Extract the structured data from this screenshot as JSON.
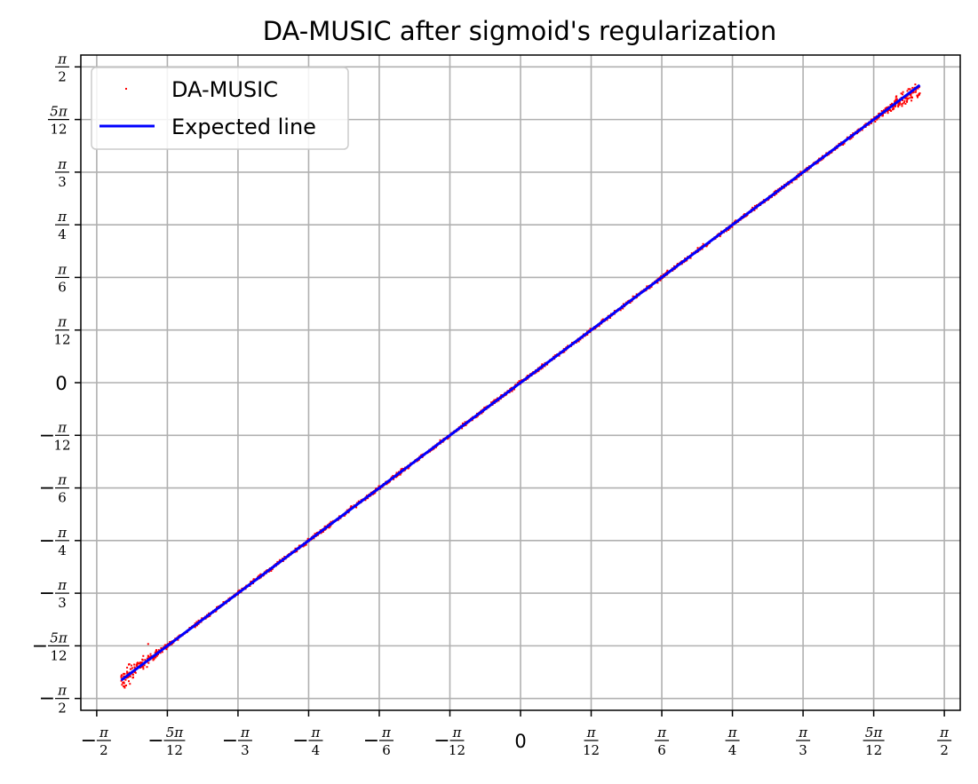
{
  "chart_data": {
    "type": "scatter",
    "title": "DA-MUSIC after sigmoid's regularization",
    "xlabel": "",
    "ylabel": "",
    "xlim": [
      -1.6297,
      1.6297
    ],
    "ylim": [
      -1.6297,
      1.6297
    ],
    "grid": true,
    "legend_position": "top-left",
    "ticks": {
      "values": [
        -1.5708,
        -1.309,
        -1.0472,
        -0.7854,
        -0.5236,
        -0.2618,
        0,
        0.2618,
        0.5236,
        0.7854,
        1.0472,
        1.309,
        1.5708
      ],
      "labels": [
        {
          "sign": "−",
          "num": "π",
          "den": "2"
        },
        {
          "sign": "−",
          "num": "5π",
          "den": "12"
        },
        {
          "sign": "−",
          "num": "π",
          "den": "3"
        },
        {
          "sign": "−",
          "num": "π",
          "den": "4"
        },
        {
          "sign": "−",
          "num": "π",
          "den": "6"
        },
        {
          "sign": "−",
          "num": "π",
          "den": "12"
        },
        {
          "sign": "",
          "num": "0",
          "den": ""
        },
        {
          "sign": "",
          "num": "π",
          "den": "12"
        },
        {
          "sign": "",
          "num": "π",
          "den": "6"
        },
        {
          "sign": "",
          "num": "π",
          "den": "4"
        },
        {
          "sign": "",
          "num": "π",
          "den": "3"
        },
        {
          "sign": "",
          "num": "5π",
          "den": "12"
        },
        {
          "sign": "",
          "num": "π",
          "den": "2"
        }
      ]
    },
    "series": [
      {
        "name": "DA-MUSIC",
        "kind": "scatter",
        "color": "#ff0000",
        "x_range": [
          -1.48,
          1.48
        ],
        "relation": "y ≈ x",
        "points": [
          [
            -1.48,
            -1.46
          ],
          [
            -1.45,
            -1.4
          ],
          [
            -1.43,
            -1.44
          ],
          [
            -1.4,
            -1.38
          ],
          [
            -1.38,
            -1.3
          ],
          [
            -1.35,
            -1.33
          ],
          [
            -1.3,
            -1.29
          ],
          [
            -1.2,
            -1.19
          ],
          [
            -1.1,
            -1.1
          ],
          [
            -1.0,
            -0.99
          ],
          [
            -0.9,
            -0.9
          ],
          [
            -0.8,
            -0.8
          ],
          [
            -0.7,
            -0.7
          ],
          [
            -0.6,
            -0.59
          ],
          [
            -0.5,
            -0.5
          ],
          [
            -0.4,
            -0.4
          ],
          [
            -0.3,
            -0.3
          ],
          [
            -0.2,
            -0.2
          ],
          [
            -0.1,
            -0.1
          ],
          [
            0.0,
            0.0
          ],
          [
            0.1,
            0.1
          ],
          [
            0.2,
            0.2
          ],
          [
            0.3,
            0.3
          ],
          [
            0.4,
            0.4
          ],
          [
            0.5,
            0.5
          ],
          [
            0.6,
            0.6
          ],
          [
            0.7,
            0.7
          ],
          [
            0.8,
            0.8
          ],
          [
            0.9,
            0.9
          ],
          [
            1.0,
            1.0
          ],
          [
            1.1,
            1.1
          ],
          [
            1.2,
            1.19
          ],
          [
            1.3,
            1.29
          ],
          [
            1.4,
            1.38
          ],
          [
            1.45,
            1.42
          ],
          [
            1.48,
            1.44
          ]
        ]
      },
      {
        "name": "Expected line",
        "kind": "line",
        "color": "#0000ff",
        "x": [
          -1.48,
          1.48
        ],
        "y": [
          -1.48,
          1.48
        ]
      }
    ]
  }
}
